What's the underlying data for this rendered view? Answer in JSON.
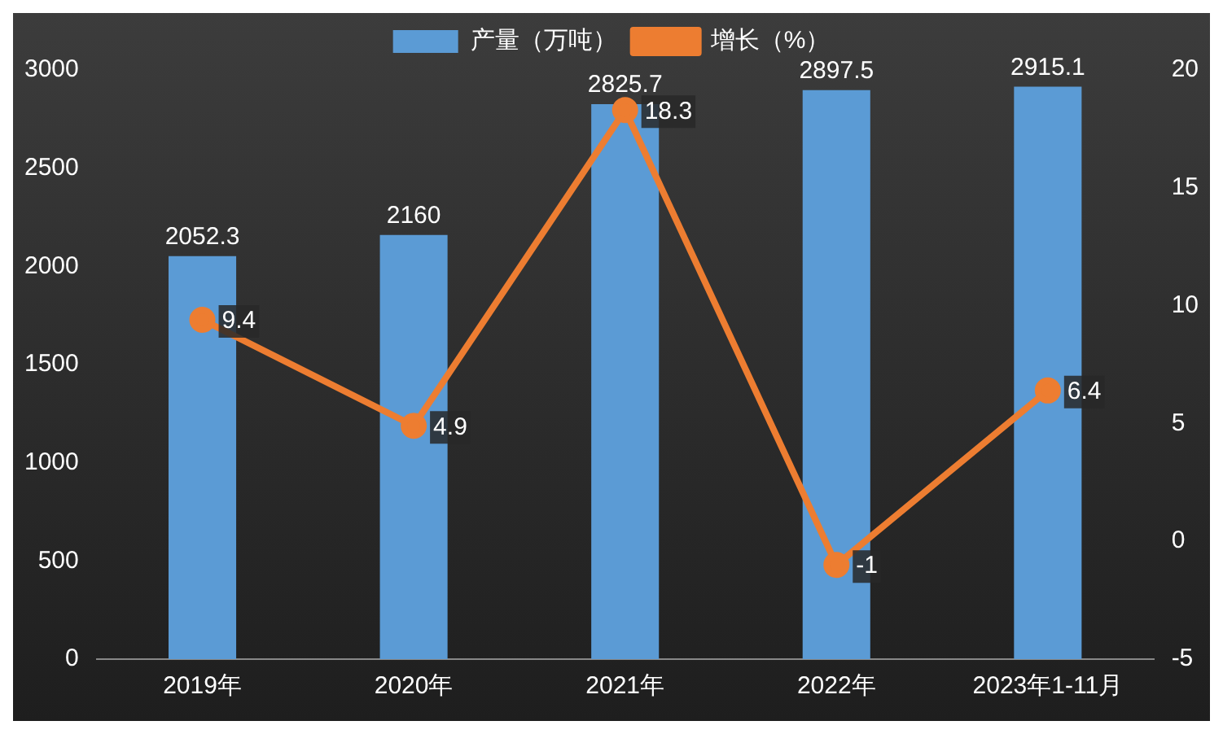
{
  "chart_data": {
    "type": "bar",
    "categories": [
      "2019年",
      "2020年",
      "2021年",
      "2022年",
      "2023年1-11月"
    ],
    "series": [
      {
        "name": "产量（万吨）",
        "color": "#5b9bd5",
        "values": [
          2052.3,
          2160,
          2825.7,
          2897.5,
          2915.1
        ]
      },
      {
        "name": "增长（%）",
        "type": "line",
        "axis": "y2",
        "color": "#ed7d31",
        "values": [
          9.4,
          4.9,
          18.3,
          -1,
          6.4
        ]
      }
    ],
    "ylim": [
      0,
      3000
    ],
    "yticks": [
      0,
      500,
      1000,
      1500,
      2000,
      2500,
      3000
    ],
    "y2lim": [
      -5,
      20
    ],
    "y2ticks": [
      -5,
      0,
      5,
      10,
      15,
      20
    ],
    "data_labels": true,
    "legend": "top",
    "grid": false,
    "marker": "circle"
  }
}
